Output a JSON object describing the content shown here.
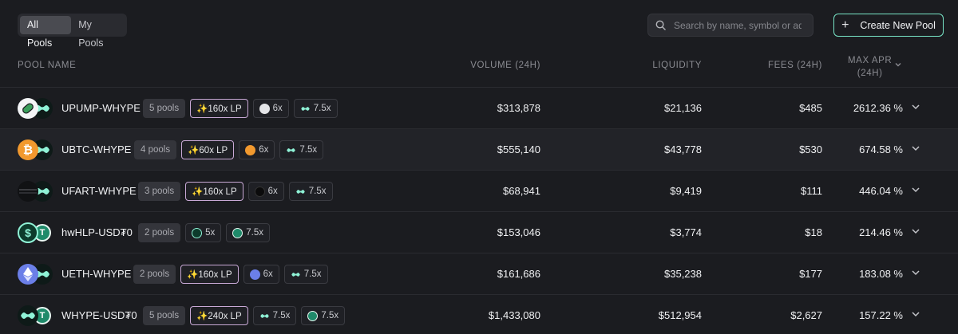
{
  "tabs": [
    {
      "label": "All Pools",
      "active": true
    },
    {
      "label": "My Pools",
      "active": false
    }
  ],
  "search": {
    "placeholder": "Search by name, symbol or address",
    "icon": "search-icon"
  },
  "create_button": {
    "label": "Create New Pool",
    "icon": "plus-icon"
  },
  "columns": {
    "pool_name": "POOL NAME",
    "volume": "VOLUME (24H)",
    "liquidity": "LIQUIDITY",
    "fees": "FEES (24H)",
    "max_apr_line1": "MAX APR",
    "max_apr_line2": "(24H)"
  },
  "colors": {
    "accent": "#78e5c7",
    "lp_border": "#c9a9d6",
    "background": "#1b1c20"
  },
  "pools": [
    {
      "name": "UPUMP-WHYPE",
      "pools": "5 pools",
      "lp": "✨160x LP",
      "mult1": "6x",
      "mult2": "7.5x",
      "volume": "$313,878",
      "liquidity": "$21,136",
      "fees": "$485",
      "apr": "2612.36 %",
      "coin_a": "upump-icon",
      "coin_b": "hype-icon"
    },
    {
      "name": "UBTC-WHYPE",
      "pools": "4 pools",
      "lp": "✨60x LP",
      "mult1": "6x",
      "mult2": "7.5x",
      "volume": "$555,140",
      "liquidity": "$43,778",
      "fees": "$530",
      "apr": "674.58 %",
      "coin_a": "bitcoin-icon",
      "coin_b": "hype-icon"
    },
    {
      "name": "UFART-WHYPE",
      "pools": "3 pools",
      "lp": "✨160x LP",
      "mult1": "6x",
      "mult2": "7.5x",
      "volume": "$68,941",
      "liquidity": "$9,419",
      "fees": "$111",
      "apr": "446.04 %",
      "coin_a": "ufart-icon",
      "coin_b": "hype-icon"
    },
    {
      "name": "hwHLP-USD₮0",
      "pools": "2 pools",
      "lp": "",
      "mult1": "5x",
      "mult2": "7.5x",
      "volume": "$153,046",
      "liquidity": "$3,774",
      "fees": "$18",
      "apr": "214.46 %",
      "coin_a": "dollar-icon",
      "coin_b": "tether-icon"
    },
    {
      "name": "UETH-WHYPE",
      "pools": "2 pools",
      "lp": "✨160x LP",
      "mult1": "6x",
      "mult2": "7.5x",
      "volume": "$161,686",
      "liquidity": "$35,238",
      "fees": "$177",
      "apr": "183.08 %",
      "coin_a": "ethereum-icon",
      "coin_b": "hype-icon"
    },
    {
      "name": "WHYPE-USD₮0",
      "pools": "5 pools",
      "lp": "✨240x LP",
      "mult1": "7.5x",
      "mult2": "7.5x",
      "volume": "$1,433,080",
      "liquidity": "$512,954",
      "fees": "$2,627",
      "apr": "157.22 %",
      "coin_a": "hype-icon",
      "coin_b": "tether-icon"
    }
  ]
}
